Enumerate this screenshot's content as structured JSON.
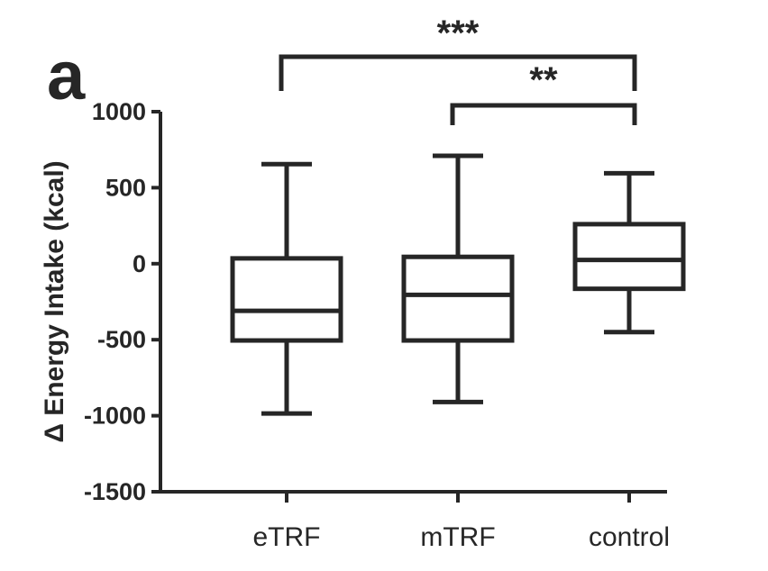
{
  "panel_label": "a",
  "chart_data": {
    "type": "box",
    "ylabel": "Δ Energy Intake (kcal)",
    "xlabel": "",
    "ylim": [
      -1500,
      1000
    ],
    "yticks": [
      -1500,
      -1000,
      -500,
      0,
      500,
      1000
    ],
    "ytick_labels": [
      "-1500",
      "-1000",
      "-500",
      "0",
      "500",
      "1000"
    ],
    "categories": [
      "eTRF",
      "mTRF",
      "control"
    ],
    "boxes": [
      {
        "category": "eTRF",
        "min": -985,
        "q1": -505,
        "median": -310,
        "q3": 35,
        "max": 655
      },
      {
        "category": "mTRF",
        "min": -910,
        "q1": -505,
        "median": -205,
        "q3": 45,
        "max": 710
      },
      {
        "category": "control",
        "min": -450,
        "q1": -165,
        "median": 25,
        "q3": 260,
        "max": 595
      }
    ],
    "significance": [
      {
        "from": "eTRF",
        "to": "control",
        "label": "***"
      },
      {
        "from": "mTRF",
        "to": "control",
        "label": "**"
      }
    ]
  }
}
